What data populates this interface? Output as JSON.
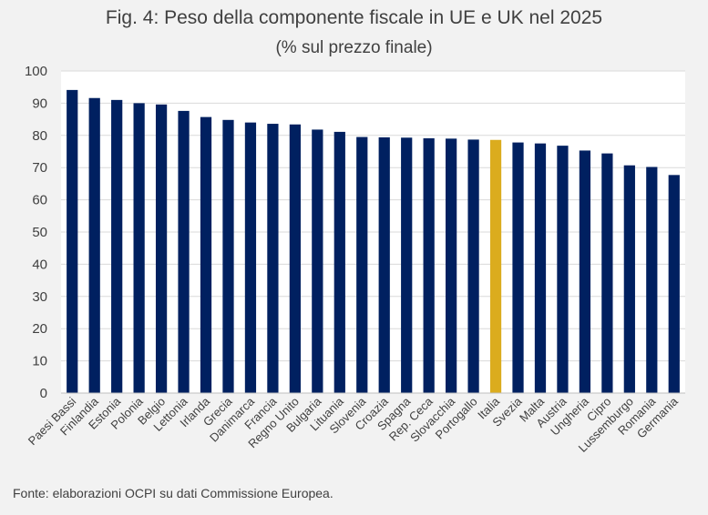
{
  "title": "Fig. 4: Peso della componente fiscale in UE e UK nel 2025",
  "subtitle": "(% sul prezzo finale)",
  "source": "Fonte: elaborazioni OCPI su dati Commissione Europea.",
  "colors": {
    "bar": "#002060",
    "highlight": "#dbac1e",
    "plot_bg": "#ffffff",
    "grid": "#d9d9d9"
  },
  "chart_data": {
    "type": "bar",
    "title": "Fig. 4: Peso della componente fiscale in UE e UK nel 2025",
    "subtitle": "(% sul prezzo finale)",
    "xlabel": "",
    "ylabel": "",
    "ylim": [
      0,
      100
    ],
    "yticks": [
      0,
      10,
      20,
      30,
      40,
      50,
      60,
      70,
      80,
      90,
      100
    ],
    "grid": true,
    "highlight_category": "Italia",
    "categories": [
      "Paesi Bassi",
      "Finlandia",
      "Estonia",
      "Polonia",
      "Belgio",
      "Lettonia",
      "Irlanda",
      "Grecia",
      "Danimarca",
      "Francia",
      "Regno Unito",
      "Bulgaria",
      "Lituania",
      "Slovenia",
      "Croazia",
      "Spagna",
      "Rep. Ceca",
      "Slovacchia",
      "Portogallo",
      "Italia",
      "Svezia",
      "Malta",
      "Austria",
      "Ungheria",
      "Cipro",
      "Lussemburgo",
      "Romania",
      "Germania"
    ],
    "values": [
      94.1,
      91.6,
      91.0,
      90.0,
      89.6,
      87.6,
      85.7,
      84.8,
      84.0,
      83.6,
      83.4,
      81.8,
      81.1,
      79.5,
      79.4,
      79.3,
      79.1,
      79.0,
      78.7,
      78.6,
      77.8,
      77.5,
      76.8,
      75.3,
      74.4,
      70.7,
      70.2,
      67.7
    ]
  }
}
